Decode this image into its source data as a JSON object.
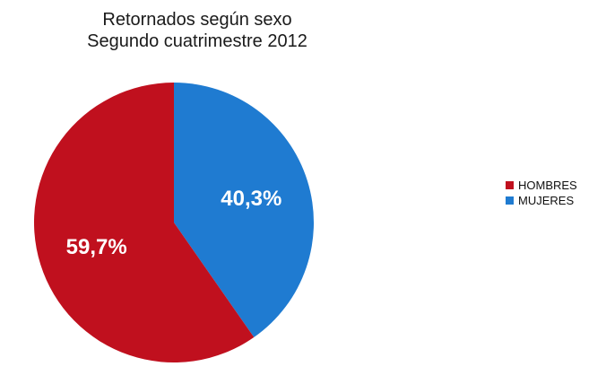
{
  "chart_data": {
    "type": "pie",
    "title": "Retornados según sexo",
    "subtitle": "Segundo cuatrimestre 2012",
    "slices": [
      {
        "name": "HOMBRES",
        "value": 59.7,
        "label": "59,7%",
        "color": "#c0101e"
      },
      {
        "name": "MUJERES",
        "value": 40.3,
        "label": "40,3%",
        "color": "#1f7bd1"
      }
    ],
    "legend_position": "right"
  }
}
